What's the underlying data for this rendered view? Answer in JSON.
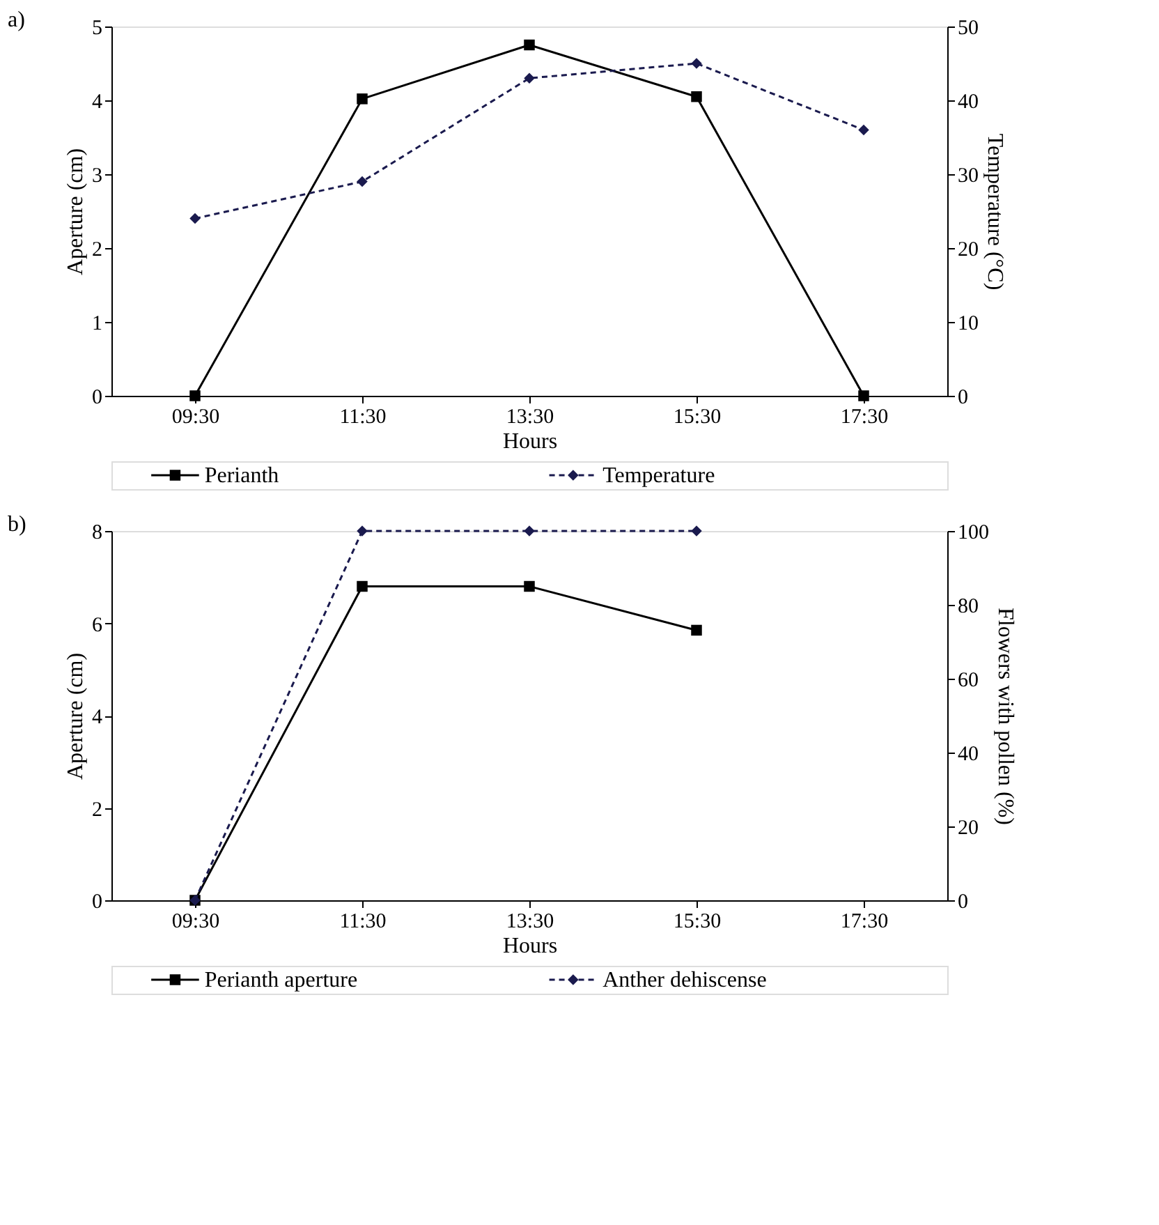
{
  "chart_data": [
    {
      "type": "line",
      "title": "a)",
      "categories": [
        "09:30",
        "11:30",
        "13:30",
        "15:30",
        "17:30"
      ],
      "xlabel": "Hours",
      "ylabel": "Aperture (cm)",
      "y2label": "Temperature (°C)",
      "ylim": [
        0,
        5
      ],
      "yticks": [
        0,
        1,
        2,
        3,
        4,
        5
      ],
      "y2lim": [
        0,
        50
      ],
      "y2ticks": [
        0,
        10,
        20,
        30,
        40,
        50
      ],
      "grid": false,
      "legend": "bottom",
      "series": [
        {
          "name": "Perianth",
          "color": "#000000",
          "marker": "square",
          "line_style": "solid",
          "values": [
            0,
            4.02,
            4.75,
            4.05,
            0
          ]
        },
        {
          "name": "Temperature",
          "color": "#1a1a4e",
          "marker": "diamond",
          "line_style": "dashed",
          "axis": "y2",
          "values": [
            24,
            29,
            43,
            45,
            36
          ]
        }
      ]
    },
    {
      "type": "line",
      "title": "b)",
      "categories": [
        "09:30",
        "11:30",
        "13:30",
        "15:30",
        "17:30"
      ],
      "xlabel": "Hours",
      "ylabel": "Aperture (cm)",
      "y2label": "Flowers with  pollen (%)",
      "ylim": [
        0,
        8
      ],
      "yticks": [
        0,
        2,
        4,
        6,
        8
      ],
      "y2lim": [
        0,
        100
      ],
      "y2ticks": [
        0,
        20,
        40,
        60,
        80,
        100
      ],
      "grid": false,
      "legend": "bottom",
      "series": [
        {
          "name": "Perianth aperture",
          "color": "#000000",
          "marker": "square",
          "line_style": "solid",
          "values": [
            0,
            6.8,
            6.8,
            5.85,
            null
          ]
        },
        {
          "name": "Anther dehiscense",
          "color": "#1a1a4e",
          "marker": "diamond",
          "line_style": "dashed",
          "axis": "y2",
          "values": [
            0,
            100,
            100,
            100,
            null
          ]
        }
      ]
    }
  ]
}
